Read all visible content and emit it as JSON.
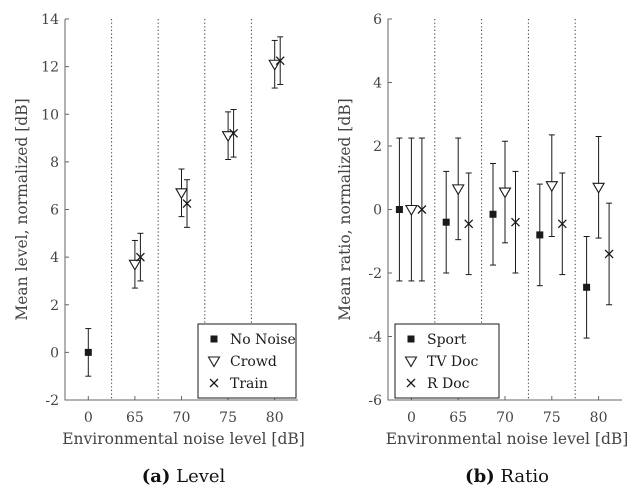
{
  "chart_data": [
    {
      "type": "scatter",
      "caption_label": "(a)",
      "caption_text": "Level",
      "xlabel": "Environmental noise level [dB]",
      "ylabel": "Mean level, normalized [dB]",
      "ylim": [
        -2,
        14
      ],
      "yticks": [
        "-2",
        "0",
        "2",
        "4",
        "6",
        "8",
        "10",
        "12",
        "14"
      ],
      "categories": [
        "0",
        "65",
        "70",
        "75",
        "80"
      ],
      "grid": "vertical dotted separators between categories",
      "legend_position": "bottom-right",
      "series": [
        {
          "name": "No Noise",
          "marker": "square",
          "points": [
            {
              "category": "0",
              "y": 0.0,
              "err": 1.0
            }
          ]
        },
        {
          "name": "Crowd",
          "marker": "triangle-down",
          "points": [
            {
              "category": "65",
              "y": 3.7,
              "err": 1.0
            },
            {
              "category": "70",
              "y": 6.7,
              "err": 1.0
            },
            {
              "category": "75",
              "y": 9.1,
              "err": 1.0
            },
            {
              "category": "80",
              "y": 12.1,
              "err": 1.0
            }
          ]
        },
        {
          "name": "Train",
          "marker": "x",
          "points": [
            {
              "category": "65",
              "y": 4.0,
              "err": 1.0
            },
            {
              "category": "70",
              "y": 6.25,
              "err": 1.0
            },
            {
              "category": "75",
              "y": 9.2,
              "err": 1.0
            },
            {
              "category": "80",
              "y": 12.25,
              "err": 1.0
            }
          ]
        }
      ]
    },
    {
      "type": "scatter",
      "caption_label": "(b)",
      "caption_text": "Ratio",
      "xlabel": "Environmental noise level [dB]",
      "ylabel": "Mean ratio, normalized [dB]",
      "ylim": [
        -6,
        6
      ],
      "yticks": [
        "-6",
        "-4",
        "-2",
        "0",
        "2",
        "4",
        "6"
      ],
      "categories": [
        "0",
        "65",
        "70",
        "75",
        "80"
      ],
      "grid": "vertical dotted separators between categories",
      "legend_position": "bottom-left",
      "series": [
        {
          "name": "Sport",
          "marker": "square",
          "points": [
            {
              "category": "0",
              "y": 0.0,
              "err": 2.25
            },
            {
              "category": "65",
              "y": -0.4,
              "err": 1.6
            },
            {
              "category": "70",
              "y": -0.15,
              "err": 1.6
            },
            {
              "category": "75",
              "y": -0.8,
              "err": 1.6
            },
            {
              "category": "80",
              "y": -2.45,
              "err": 1.6
            }
          ]
        },
        {
          "name": "TV Doc",
          "marker": "triangle-down",
          "points": [
            {
              "category": "0",
              "y": 0.0,
              "err": 2.25
            },
            {
              "category": "65",
              "y": 0.65,
              "err": 1.6
            },
            {
              "category": "70",
              "y": 0.55,
              "err": 1.6
            },
            {
              "category": "75",
              "y": 0.75,
              "err": 1.6
            },
            {
              "category": "80",
              "y": 0.7,
              "err": 1.6
            }
          ]
        },
        {
          "name": "R Doc",
          "marker": "x",
          "points": [
            {
              "category": "0",
              "y": 0.0,
              "err": 2.25
            },
            {
              "category": "65",
              "y": -0.45,
              "err": 1.6
            },
            {
              "category": "70",
              "y": -0.4,
              "err": 1.6
            },
            {
              "category": "75",
              "y": -0.45,
              "err": 1.6
            },
            {
              "category": "80",
              "y": -1.4,
              "err": 1.6
            }
          ]
        }
      ]
    }
  ]
}
